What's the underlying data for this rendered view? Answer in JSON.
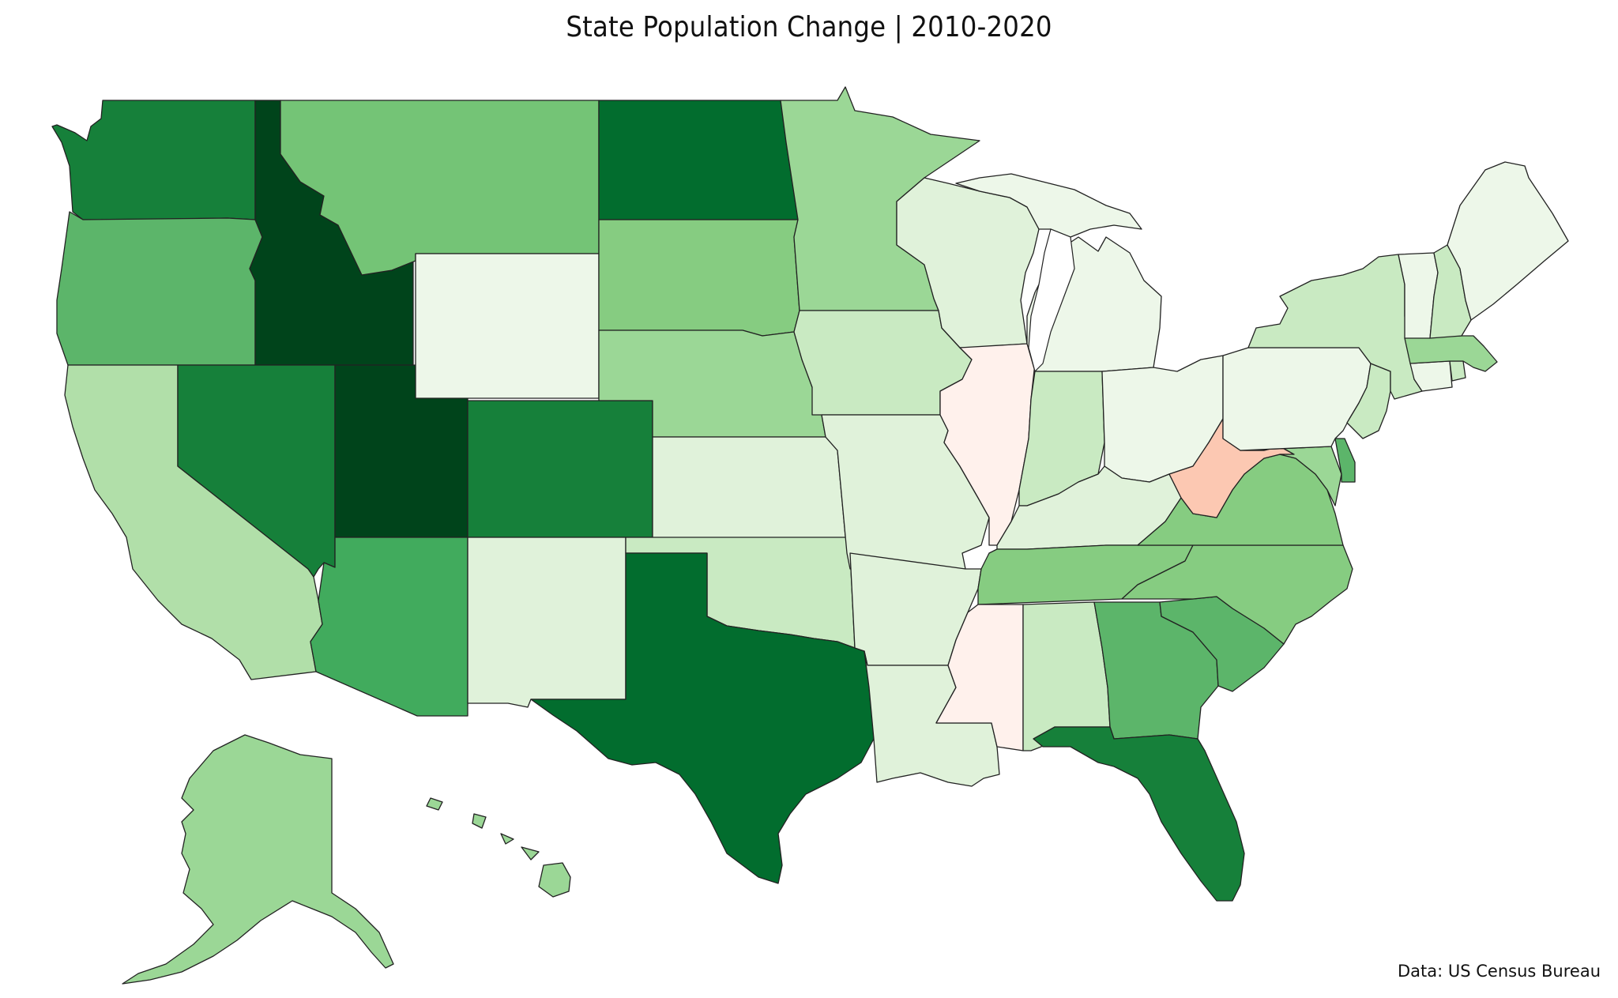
{
  "title": "State Population Change | 2010-2020",
  "source": "Data: US Census Bureau",
  "colors": {
    "g9": "#00441b",
    "g8": "#026d2e",
    "g7": "#16803a",
    "g6": "#41ab5d",
    "g5": "#5cb56a",
    "g4": "#74c476",
    "g3": "#86cc81",
    "g2": "#9bd796",
    "g1": "#b1dfa9",
    "g0": "#c9eac2",
    "l1": "#e0f2da",
    "l0": "#edf7e9",
    "r0": "#fff1ec",
    "r1": "#fcc8b2"
  },
  "states": [
    {
      "id": "WA",
      "name": "Washington",
      "fill": "g7"
    },
    {
      "id": "OR",
      "name": "Oregon",
      "fill": "g5"
    },
    {
      "id": "CA",
      "name": "California",
      "fill": "g1"
    },
    {
      "id": "ID",
      "name": "Idaho",
      "fill": "g9"
    },
    {
      "id": "NV",
      "name": "Nevada",
      "fill": "g7"
    },
    {
      "id": "UT",
      "name": "Utah",
      "fill": "g9"
    },
    {
      "id": "AZ",
      "name": "Arizona",
      "fill": "g6"
    },
    {
      "id": "MT",
      "name": "Montana",
      "fill": "g4"
    },
    {
      "id": "WY",
      "name": "Wyoming",
      "fill": "l0"
    },
    {
      "id": "CO",
      "name": "Colorado",
      "fill": "g7"
    },
    {
      "id": "NM",
      "name": "New Mexico",
      "fill": "l1"
    },
    {
      "id": "ND",
      "name": "North Dakota",
      "fill": "g8"
    },
    {
      "id": "SD",
      "name": "South Dakota",
      "fill": "g3"
    },
    {
      "id": "NE",
      "name": "Nebraska",
      "fill": "g2"
    },
    {
      "id": "KS",
      "name": "Kansas",
      "fill": "l1"
    },
    {
      "id": "OK",
      "name": "Oklahoma",
      "fill": "g0"
    },
    {
      "id": "TX",
      "name": "Texas",
      "fill": "g8"
    },
    {
      "id": "MN",
      "name": "Minnesota",
      "fill": "g2"
    },
    {
      "id": "IA",
      "name": "Iowa",
      "fill": "g0"
    },
    {
      "id": "MO",
      "name": "Missouri",
      "fill": "l1"
    },
    {
      "id": "AR",
      "name": "Arkansas",
      "fill": "l1"
    },
    {
      "id": "LA",
      "name": "Louisiana",
      "fill": "l1"
    },
    {
      "id": "WI",
      "name": "Wisconsin",
      "fill": "l1"
    },
    {
      "id": "IL",
      "name": "Illinois",
      "fill": "r0"
    },
    {
      "id": "MS",
      "name": "Mississippi",
      "fill": "r0"
    },
    {
      "id": "MI",
      "name": "Michigan",
      "fill": "l0"
    },
    {
      "id": "IN",
      "name": "Indiana",
      "fill": "g0"
    },
    {
      "id": "OH",
      "name": "Ohio",
      "fill": "l0"
    },
    {
      "id": "KY",
      "name": "Kentucky",
      "fill": "l1"
    },
    {
      "id": "TN",
      "name": "Tennessee",
      "fill": "g3"
    },
    {
      "id": "AL",
      "name": "Alabama",
      "fill": "g0"
    },
    {
      "id": "GA",
      "name": "Georgia",
      "fill": "g5"
    },
    {
      "id": "FL",
      "name": "Florida",
      "fill": "g7"
    },
    {
      "id": "SC",
      "name": "South Carolina",
      "fill": "g5"
    },
    {
      "id": "NC",
      "name": "North Carolina",
      "fill": "g3"
    },
    {
      "id": "VA",
      "name": "Virginia",
      "fill": "g3"
    },
    {
      "id": "WV",
      "name": "West Virginia",
      "fill": "r1"
    },
    {
      "id": "MD",
      "name": "Maryland",
      "fill": "g2"
    },
    {
      "id": "DE",
      "name": "Delaware",
      "fill": "g5"
    },
    {
      "id": "PA",
      "name": "Pennsylvania",
      "fill": "l0"
    },
    {
      "id": "NJ",
      "name": "New Jersey",
      "fill": "g0"
    },
    {
      "id": "NY",
      "name": "New York",
      "fill": "g0"
    },
    {
      "id": "CT",
      "name": "Connecticut",
      "fill": "l0"
    },
    {
      "id": "RI",
      "name": "Rhode Island",
      "fill": "g0"
    },
    {
      "id": "MA",
      "name": "Massachusetts",
      "fill": "g2"
    },
    {
      "id": "VT",
      "name": "Vermont",
      "fill": "l0"
    },
    {
      "id": "NH",
      "name": "New Hampshire",
      "fill": "g0"
    },
    {
      "id": "ME",
      "name": "Maine",
      "fill": "l0"
    },
    {
      "id": "AK",
      "name": "Alaska",
      "fill": "g2"
    },
    {
      "id": "HI",
      "name": "Hawaii",
      "fill": "g2"
    }
  ]
}
